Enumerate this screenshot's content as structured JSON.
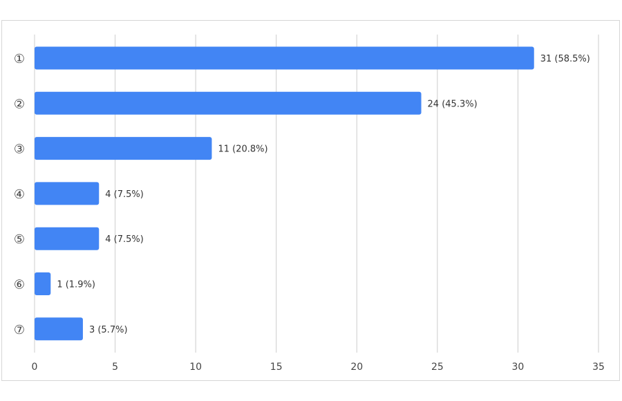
{
  "chart_data": {
    "type": "bar",
    "orientation": "horizontal",
    "categories": [
      "①",
      "②",
      "③",
      "④",
      "⑤",
      "⑥",
      "⑦"
    ],
    "values": [
      31,
      24,
      11,
      4,
      4,
      1,
      3
    ],
    "data_labels": [
      "31 (58.5%)",
      "24 (45.3%)",
      "11 (20.8%)",
      "4 (7.5%)",
      "4 (7.5%)",
      "1 (1.9%)",
      "3 (5.7%)"
    ],
    "xlim": [
      0,
      35
    ],
    "x_ticks": [
      "0",
      "5",
      "10",
      "15",
      "20",
      "25",
      "30",
      "35"
    ],
    "grid": true,
    "legend": "none",
    "bar_color": "#4285f4",
    "grid_color": "#cccccc",
    "title": "",
    "xlabel": "",
    "ylabel": ""
  }
}
